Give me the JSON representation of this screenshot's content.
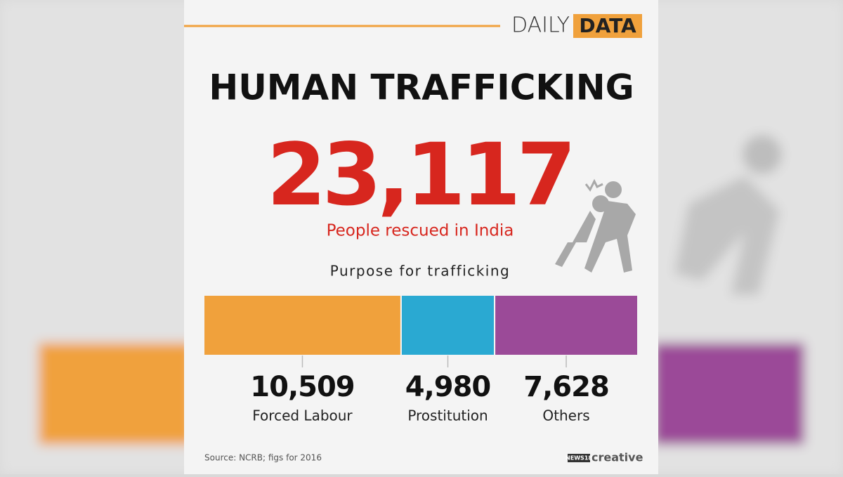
{
  "brand": {
    "daily": "DAILY",
    "data": "DATA"
  },
  "title": "HUMAN TRAFFICKING",
  "headline": {
    "number": "23,117",
    "caption": "People rescued in India"
  },
  "chart_data": {
    "type": "stacked-bar",
    "title": "Purpose for trafficking",
    "categories": [
      "Forced Labour",
      "Prostitution",
      "Others"
    ],
    "values": [
      10509,
      4980,
      7628
    ],
    "value_labels": [
      "10,509",
      "4,980",
      "7,628"
    ],
    "colors": [
      "#f0a13c",
      "#2aa9d2",
      "#9b4a98"
    ]
  },
  "source": "Source: NCRB; figs for 2016",
  "logo": {
    "news": "NEWS18",
    "creative": "creative"
  }
}
